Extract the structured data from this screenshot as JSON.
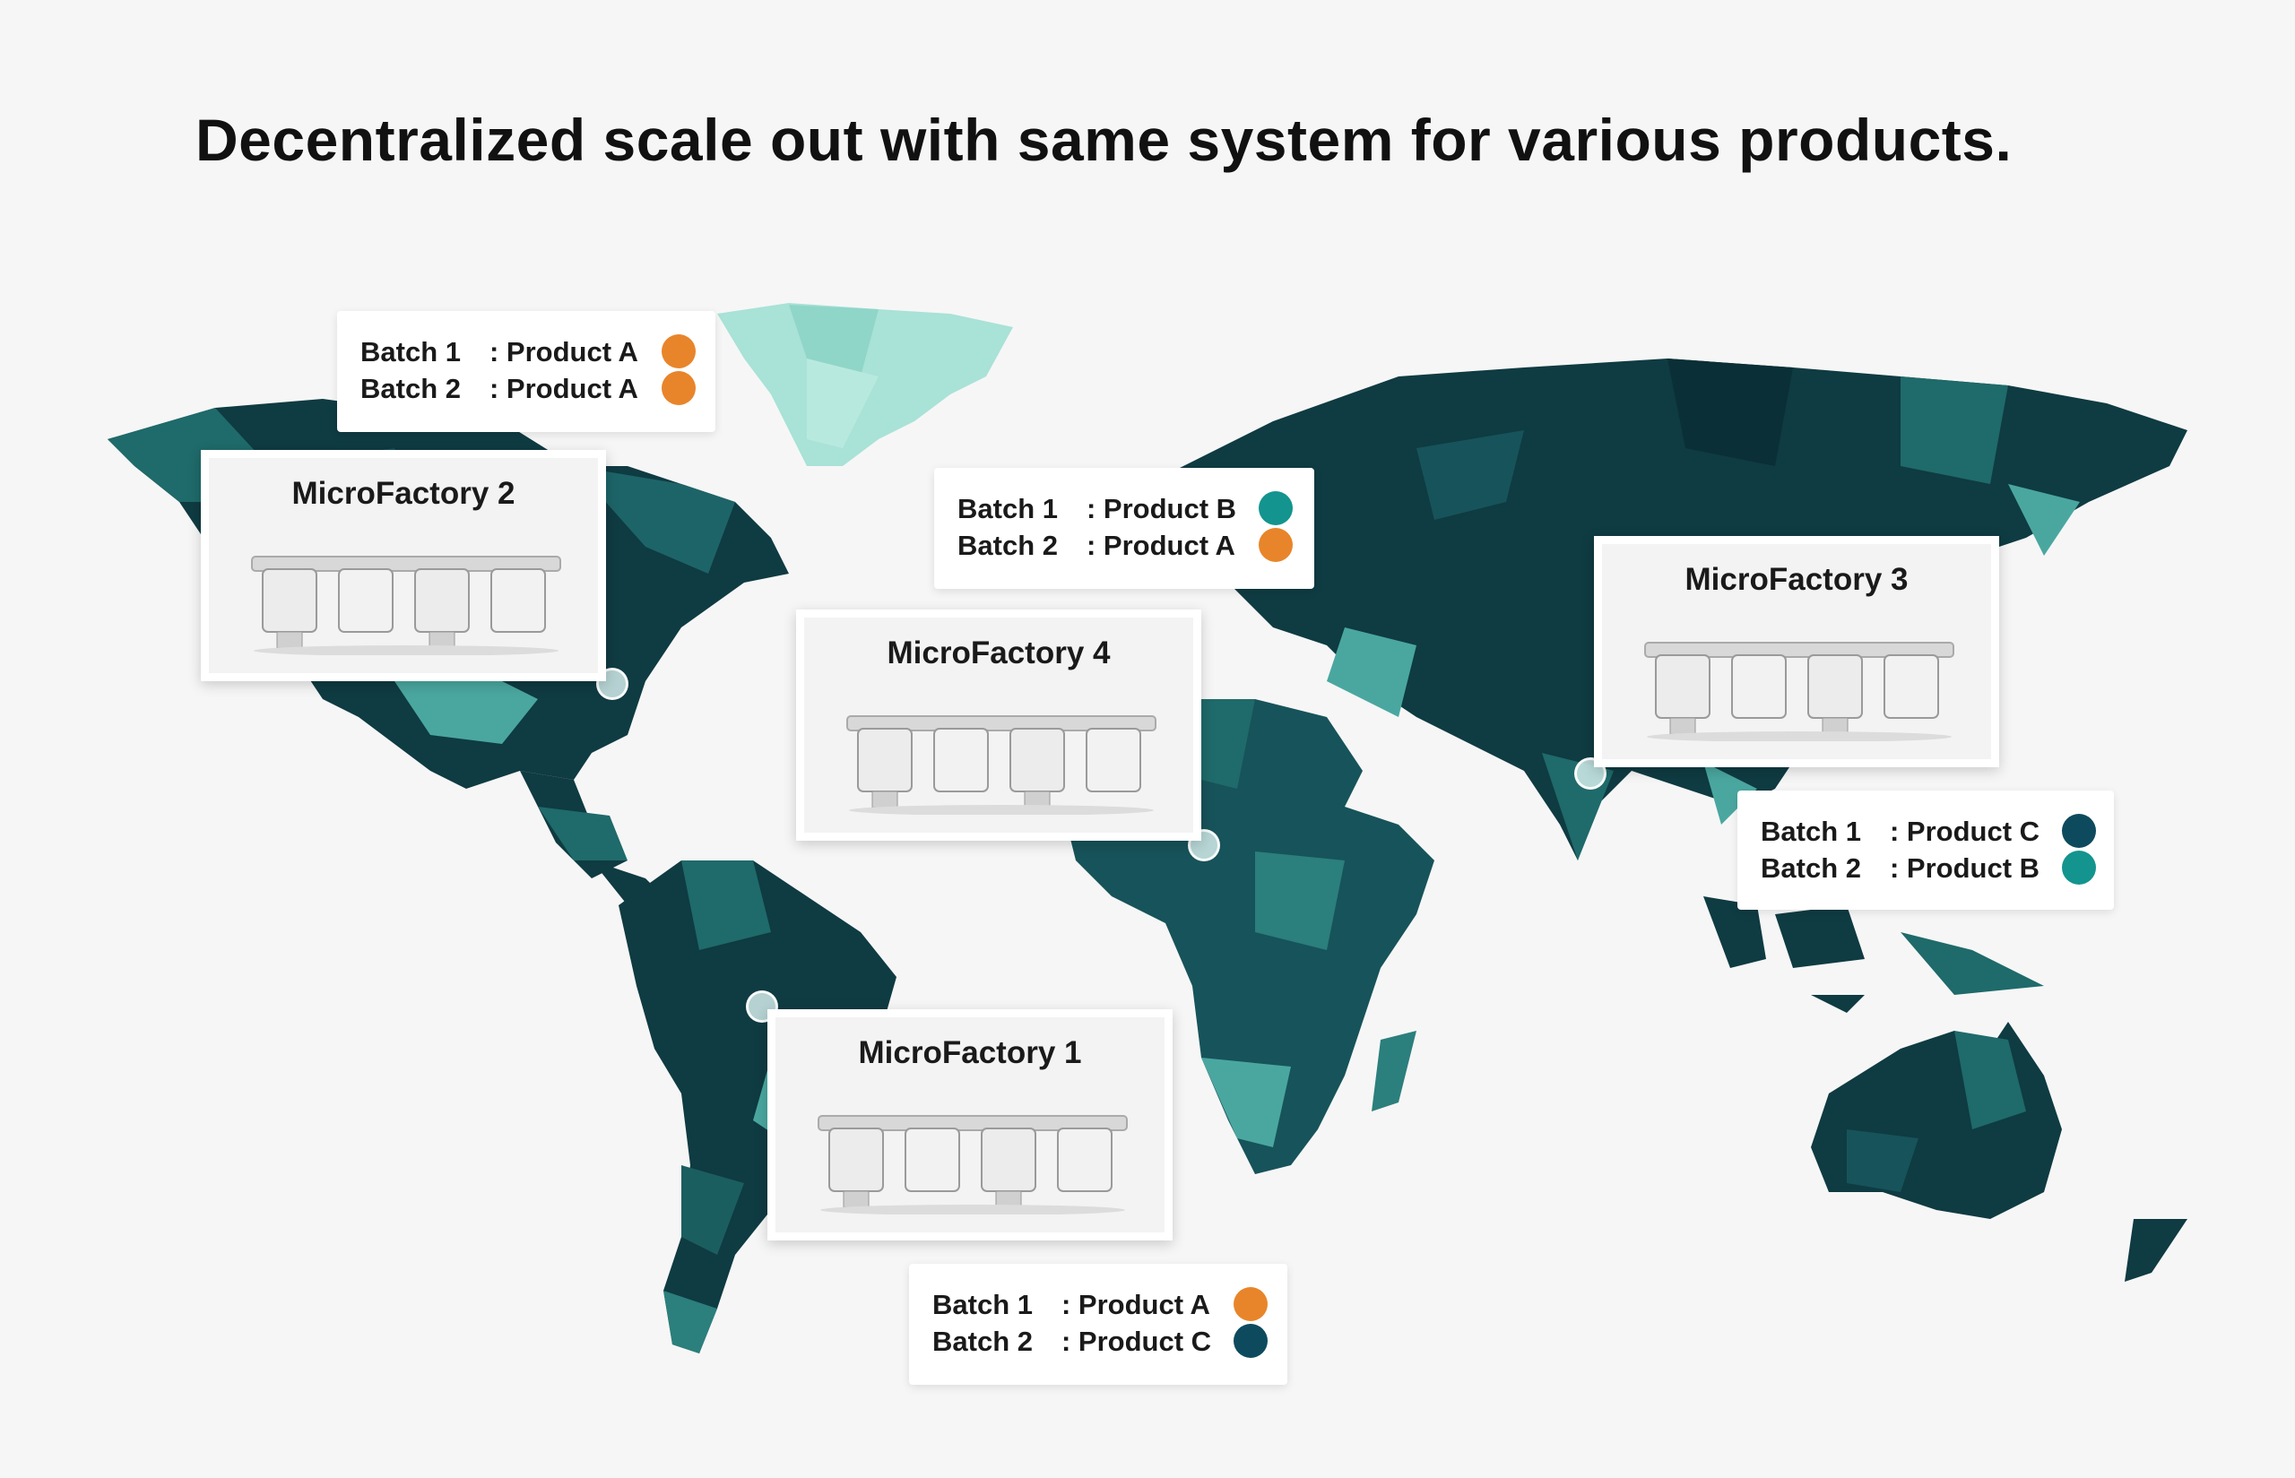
{
  "title": "Decentralized scale out with same system for various products.",
  "colors": {
    "product_a": "#e8852a",
    "product_b": "#13948f",
    "product_c": "#0e4a5e",
    "map_dark": "#0f3b42",
    "map_mid": "#1f6a6a",
    "map_light": "#4aa7a0",
    "greenland": "#a9e2d7"
  },
  "factories": [
    {
      "name": "MicroFactory 2",
      "batches": [
        {
          "batch": "Batch 1",
          "product": ": Product A",
          "dot": "#e8852a"
        },
        {
          "batch": "Batch 2",
          "product": ": Product A",
          "dot": "#e8852a"
        }
      ]
    },
    {
      "name": "MicroFactory 4",
      "batches": [
        {
          "batch": "Batch 1",
          "product": ": Product B",
          "dot": "#13948f"
        },
        {
          "batch": "Batch 2",
          "product": ": Product A",
          "dot": "#e8852a"
        }
      ]
    },
    {
      "name": "MicroFactory 3",
      "batches": [
        {
          "batch": "Batch 1",
          "product": ": Product C",
          "dot": "#0e4a5e"
        },
        {
          "batch": "Batch 2",
          "product": ": Product B",
          "dot": "#13948f"
        }
      ]
    },
    {
      "name": "MicroFactory 1",
      "batches": [
        {
          "batch": "Batch 1",
          "product": ": Product A",
          "dot": "#e8852a"
        },
        {
          "batch": "Batch 2",
          "product": ": Product C",
          "dot": "#0e4a5e"
        }
      ]
    }
  ]
}
